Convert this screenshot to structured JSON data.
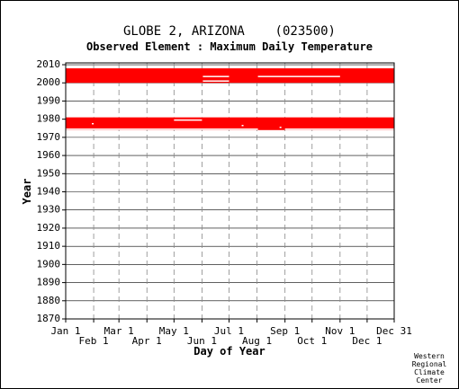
{
  "chart_data": {
    "type": "bar",
    "title": "GLOBE 2, ARIZONA    (023500)",
    "subtitle": "Observed Element : Maximum Daily Temperature",
    "xlabel": "Day of Year",
    "ylabel": "Year",
    "x_ticks_top": [
      "Jan 1",
      "Mar 1",
      "May 1",
      "Jul 1",
      "Sep 1",
      "Nov 1",
      "Dec 31"
    ],
    "x_ticks_bottom": [
      "Feb 1",
      "Apr 1",
      "Jun 1",
      "Aug 1",
      "Oct 1",
      "Dec 1"
    ],
    "x_tick_days": [
      1,
      32,
      60,
      91,
      121,
      152,
      182,
      213,
      244,
      274,
      305,
      335,
      365
    ],
    "y_ticks": [
      2010,
      2000,
      1990,
      1980,
      1970,
      1960,
      1950,
      1940,
      1930,
      1920,
      1910,
      1900,
      1890,
      1880,
      1870
    ],
    "xlim": [
      1,
      365
    ],
    "ylim": [
      1870,
      2011
    ],
    "grid": true,
    "data_color": "#ff0000",
    "series": [
      {
        "years": [
          2000,
          2008
        ],
        "day_start": 1,
        "day_end": 365
      },
      {
        "years": [
          1974,
          1981
        ],
        "day_start": 1,
        "day_end": 365
      }
    ],
    "gaps": [
      {
        "year": 2003.5,
        "day_start": 153,
        "day_end": 182
      },
      {
        "year": 2003.5,
        "day_start": 214,
        "day_end": 305
      },
      {
        "year": 2001,
        "day_start": 153,
        "day_end": 182
      },
      {
        "year": 1981.5,
        "day_start": 1,
        "day_end": 32
      },
      {
        "year": 1981.5,
        "day_start": 91,
        "day_end": 182
      },
      {
        "year": 1979.5,
        "day_start": 121,
        "day_end": 152
      },
      {
        "year": 1977.5,
        "day_start": 30,
        "day_end": 32
      },
      {
        "year": 1976.5,
        "day_start": 196,
        "day_end": 198
      },
      {
        "year": 1975.5,
        "day_start": 238,
        "day_end": 240
      },
      {
        "year": 1974.5,
        "day_start": 1,
        "day_end": 214
      },
      {
        "year": 1974.5,
        "day_start": 244,
        "day_end": 365
      }
    ],
    "credit": [
      "Western",
      "Regional",
      "Climate",
      "Center"
    ]
  }
}
